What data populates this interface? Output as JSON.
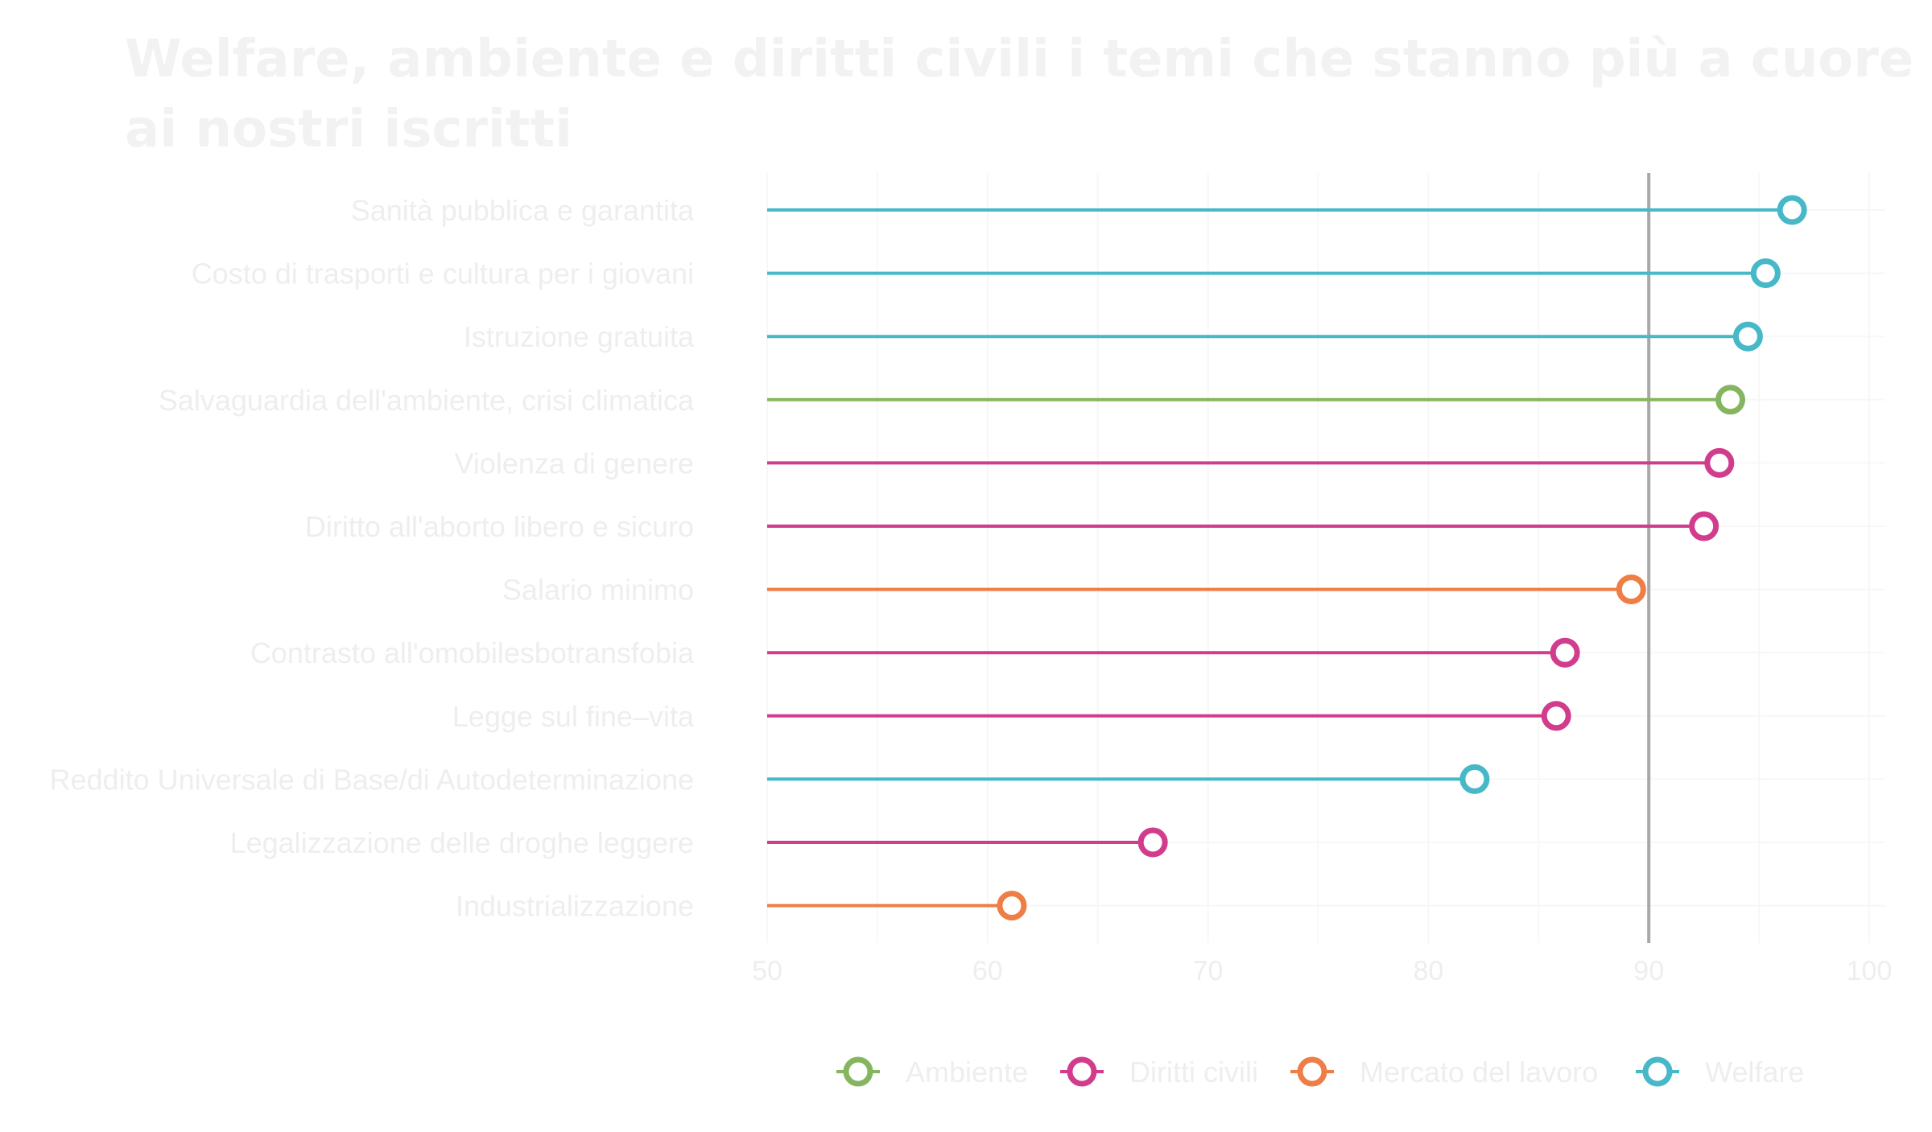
{
  "chart_data": {
    "type": "lollipop",
    "title": "Welfare, ambiente e diritti civili i temi che stanno più a cuore ai nostri iscritti",
    "title_lines": [
      "Welfare, ambiente e diritti civili i temi che stanno più a cuore",
      "ai nostri iscritti"
    ],
    "xlim": [
      50,
      100
    ],
    "x_ticks": [
      50,
      60,
      70,
      80,
      90,
      100
    ],
    "reference_line": 90,
    "grid": true,
    "legend_position": "bottom",
    "colors": {
      "Ambiente": "#86b55f",
      "Diritti civili": "#d23c8c",
      "Mercato del lavoro": "#ee7d46",
      "Welfare": "#46b8c8",
      "reference_line": "#a8a8a8"
    },
    "legend": [
      "Ambiente",
      "Diritti civili",
      "Mercato del lavoro",
      "Welfare"
    ],
    "items": [
      {
        "label": "Sanità pubblica e garantita",
        "value": 96.5,
        "category": "Welfare"
      },
      {
        "label": "Costo di trasporti e cultura per i giovani",
        "value": 95.3,
        "category": "Welfare"
      },
      {
        "label": "Istruzione gratuita",
        "value": 94.5,
        "category": "Welfare"
      },
      {
        "label": "Salvaguardia dell'ambiente, crisi climatica",
        "value": 93.7,
        "category": "Ambiente"
      },
      {
        "label": "Violenza di genere",
        "value": 93.2,
        "category": "Diritti civili"
      },
      {
        "label": "Diritto all'aborto libero e sicuro",
        "value": 92.5,
        "category": "Diritti civili"
      },
      {
        "label": "Salario minimo",
        "value": 89.2,
        "category": "Mercato del lavoro"
      },
      {
        "label": "Contrasto all'omobilesbotransfobia",
        "value": 86.2,
        "category": "Diritti civili"
      },
      {
        "label": "Legge sul fine–vita",
        "value": 85.8,
        "category": "Diritti civili"
      },
      {
        "label": "Reddito Universale di Base/di Autodeterminazione",
        "value": 82.1,
        "category": "Welfare"
      },
      {
        "label": "Legalizzazione delle droghe leggere",
        "value": 67.5,
        "category": "Diritti civili"
      },
      {
        "label": "Industrializzazione",
        "value": 61.1,
        "category": "Mercato del lavoro"
      }
    ]
  }
}
